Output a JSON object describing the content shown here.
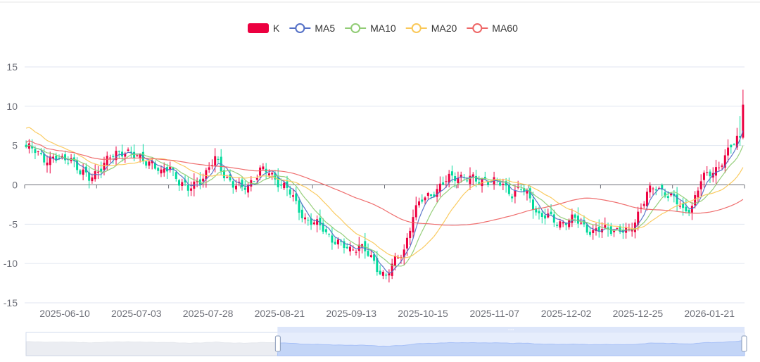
{
  "chart_data": {
    "type": "candlestick",
    "title": "",
    "legend": {
      "placement": "top-center",
      "items": [
        {
          "name": "K",
          "color": "#ec0040",
          "shape": "rect"
        },
        {
          "name": "MA5",
          "color": "#5470c6",
          "shape": "circle"
        },
        {
          "name": "MA10",
          "color": "#91cc75",
          "shape": "circle"
        },
        {
          "name": "MA20",
          "color": "#fac858",
          "shape": "circle"
        },
        {
          "name": "MA60",
          "color": "#ee6666",
          "shape": "circle"
        }
      ]
    },
    "colors": {
      "up": "#ec0040",
      "down": "#00da9c",
      "grid": "#e0e6f1",
      "zero_axis": "#6e7079",
      "slider_fill": "#e0e8fb",
      "slider_line": "#8fb0f7"
    },
    "y_axis": {
      "min": -15,
      "max": 15,
      "ticks": [
        15,
        10,
        5,
        0,
        -5,
        -10,
        -15
      ],
      "grid": true
    },
    "x_axis": {
      "tick_labels": [
        "2025-06-10",
        "2025-07-03",
        "2025-07-28",
        "2025-08-21",
        "2025-09-13",
        "2025-10-15",
        "2025-11-07",
        "2025-12-02",
        "2025-12-25",
        "2026-01-21"
      ]
    },
    "data_zoom": {
      "start_percent": 35,
      "end_percent": 100
    },
    "price_anchors": [
      [
        0,
        4.8
      ],
      [
        3,
        4.2
      ],
      [
        6,
        3.5
      ],
      [
        9,
        3.3
      ],
      [
        12,
        3.0
      ],
      [
        15,
        3.6
      ],
      [
        18,
        1.5
      ],
      [
        21,
        0.8
      ],
      [
        24,
        2.0
      ],
      [
        27,
        3.0
      ],
      [
        30,
        4.0
      ],
      [
        33,
        4.5
      ],
      [
        36,
        3.5
      ],
      [
        39,
        3.2
      ],
      [
        42,
        3.0
      ],
      [
        45,
        1.2
      ],
      [
        48,
        2.5
      ],
      [
        51,
        0.5
      ],
      [
        54,
        -0.8
      ],
      [
        57,
        0.5
      ],
      [
        60,
        1.5
      ],
      [
        63,
        3.2
      ],
      [
        66,
        1.5
      ],
      [
        69,
        0.0
      ],
      [
        72,
        -0.6
      ],
      [
        75,
        0.5
      ],
      [
        78,
        1.8
      ],
      [
        81,
        1.5
      ],
      [
        84,
        0.5
      ],
      [
        87,
        -0.5
      ],
      [
        90,
        -2.5
      ],
      [
        93,
        -4.2
      ],
      [
        96,
        -5.0
      ],
      [
        99,
        -5.5
      ],
      [
        102,
        -6.8
      ],
      [
        105,
        -7.8
      ],
      [
        108,
        -8.2
      ],
      [
        111,
        -7.5
      ],
      [
        114,
        -9.0
      ],
      [
        117,
        -10.5
      ],
      [
        120,
        -11.5
      ],
      [
        123,
        -9.8
      ],
      [
        126,
        -8.2
      ],
      [
        129,
        -3.8
      ],
      [
        132,
        -2.0
      ],
      [
        135,
        -1.0
      ],
      [
        138,
        -0.3
      ],
      [
        141,
        0.8
      ],
      [
        144,
        1.3
      ],
      [
        147,
        0.8
      ],
      [
        150,
        0.5
      ],
      [
        153,
        0.8
      ],
      [
        156,
        0.3
      ],
      [
        159,
        0.0
      ],
      [
        162,
        -1.0
      ],
      [
        165,
        -0.6
      ],
      [
        168,
        -1.8
      ],
      [
        171,
        -3.8
      ],
      [
        174,
        -4.2
      ],
      [
        177,
        -4.8
      ],
      [
        180,
        -4.5
      ],
      [
        183,
        -4.5
      ],
      [
        186,
        -5.2
      ],
      [
        189,
        -6.0
      ],
      [
        192,
        -5.8
      ],
      [
        195,
        -5.5
      ],
      [
        198,
        -5.8
      ],
      [
        201,
        -6.2
      ],
      [
        204,
        -3.5
      ],
      [
        207,
        -1.0
      ],
      [
        210,
        -0.5
      ],
      [
        213,
        -0.8
      ],
      [
        216,
        -1.8
      ],
      [
        219,
        -3.5
      ],
      [
        222,
        -2.5
      ],
      [
        225,
        0.5
      ],
      [
        228,
        1.5
      ],
      [
        231,
        2.5
      ],
      [
        234,
        4.0
      ],
      [
        237,
        6.0
      ],
      [
        239,
        10.2
      ]
    ]
  }
}
